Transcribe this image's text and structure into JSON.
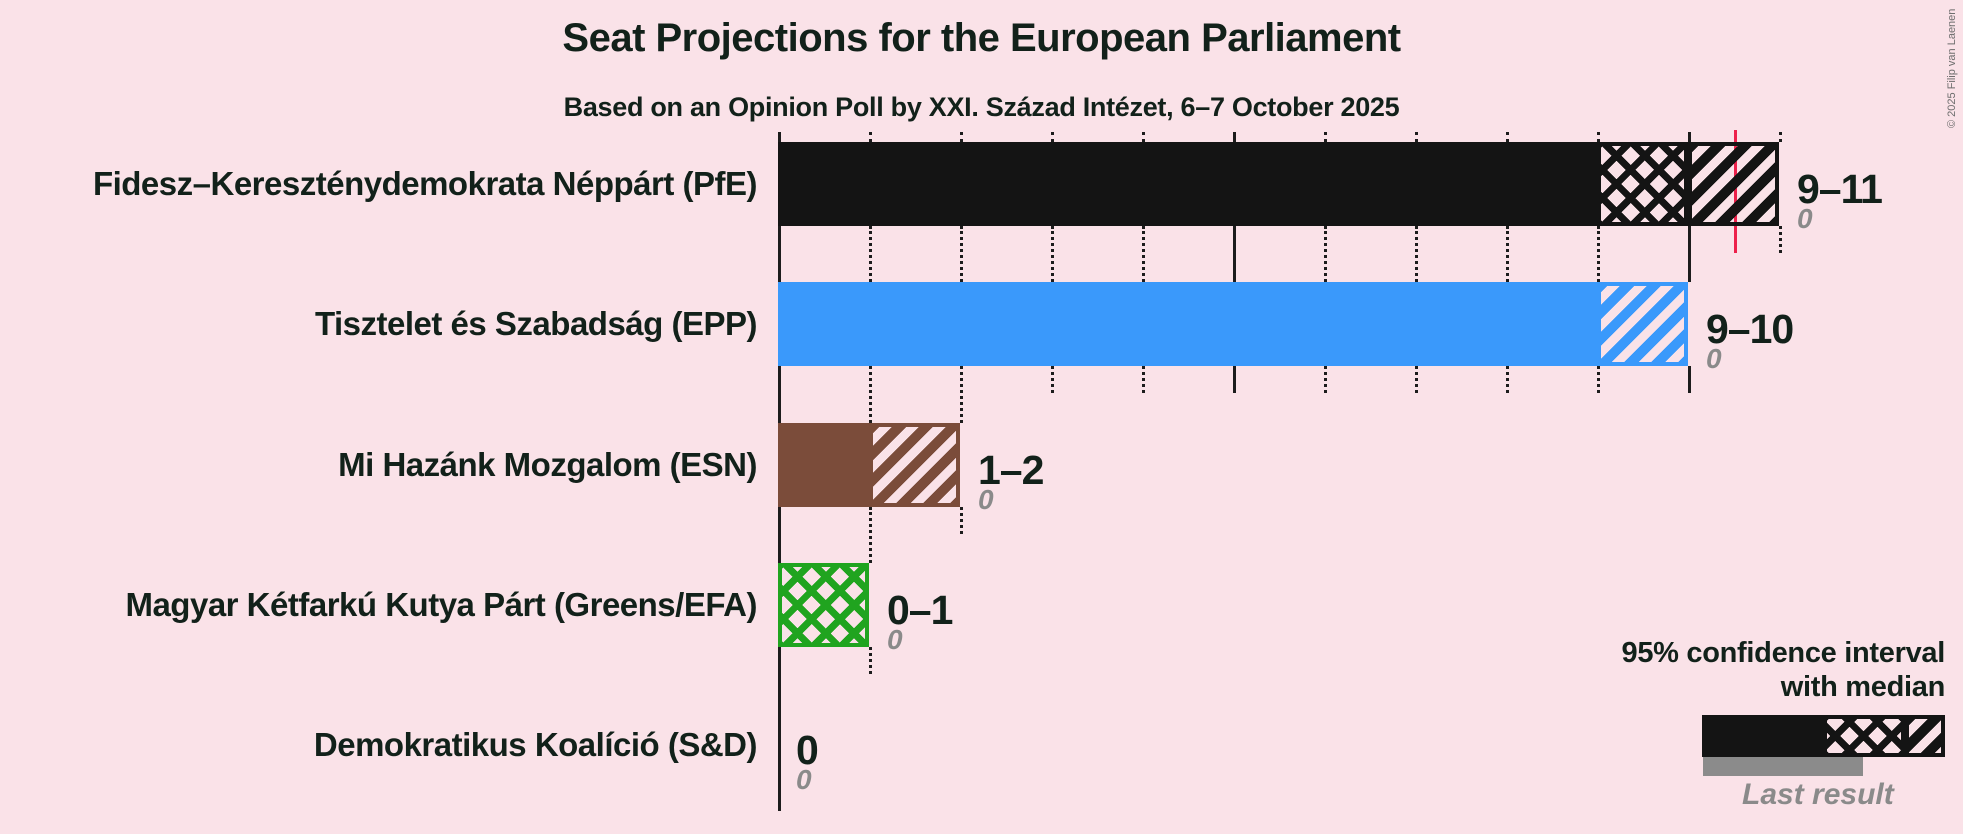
{
  "title": "Seat Projections for the European Parliament",
  "subtitle": "Based on an Opinion Poll by XXI. Század Intézet, 6–7 October 2025",
  "copyright": "© 2025 Filip van Laenen",
  "legend": {
    "ci_line1": "95% confidence interval",
    "ci_line2": "with median",
    "last_result": "Last result"
  },
  "colors": {
    "background": "#fae2e8",
    "text_dark": "#12211a",
    "grid": "#1c1c1c",
    "majority_line": "#ed204b",
    "last_result_gray": "#8b8b8b",
    "gray_text": "#8a8a8a"
  },
  "chart_data": {
    "type": "bar",
    "orientation": "horizontal",
    "title": "Seat Projections for the European Parliament",
    "subtitle": "Based on an Opinion Poll by XXI. Század Intézet, 6–7 October 2025",
    "unit": "seats",
    "x_axis": {
      "min": 0,
      "max": 11,
      "minor_tick_step": 1,
      "major_tick_step": 5,
      "gridlines": "minor dotted, major solid",
      "majority_line_value": 10.5
    },
    "legend_position": "bottom-right",
    "series": [
      {
        "party": "Fidesz–Kereszténydemokrata Néppárt (PfE)",
        "color": "#141414",
        "ci_low": 9,
        "median": 10,
        "ci_high": 11,
        "range_label": "9–11",
        "last_result_label": "0",
        "last_result_value": 0
      },
      {
        "party": "Tisztelet és Szabadság (EPP)",
        "color": "#3a99fb",
        "ci_low": 9,
        "median": 9,
        "ci_high": 10,
        "range_label": "9–10",
        "last_result_label": "0",
        "last_result_value": 0
      },
      {
        "party": "Mi Hazánk Mozgalom (ESN)",
        "color": "#7b4c3a",
        "ci_low": 1,
        "median": 1,
        "ci_high": 2,
        "range_label": "1–2",
        "last_result_label": "0",
        "last_result_value": 0
      },
      {
        "party": "Magyar Kétfarkú Kutya Párt (Greens/EFA)",
        "color": "#20a41f",
        "ci_low": 0,
        "median": 1,
        "ci_high": 1,
        "range_label": "0–1",
        "last_result_label": "0",
        "last_result_value": 0
      },
      {
        "party": "Demokratikus Koalíció (S&D)",
        "color": "#141414",
        "ci_low": 0,
        "median": 0,
        "ci_high": 0,
        "range_label": "0",
        "last_result_label": "0",
        "last_result_value": 0
      }
    ]
  }
}
